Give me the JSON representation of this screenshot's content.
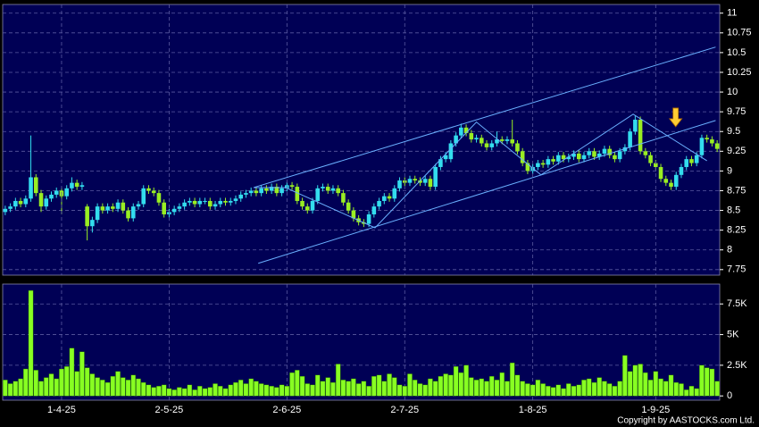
{
  "chart_data": [
    {
      "type": "candlestick",
      "up_color": "#33ddee",
      "down_color": "#99ee22",
      "ylim": [
        7.68,
        11.11
      ],
      "yticks": [
        7.75,
        8,
        8.25,
        8.5,
        8.75,
        9,
        9.25,
        9.5,
        9.75,
        10,
        10.25,
        10.5,
        10.75,
        11
      ],
      "grid": true,
      "ohlc": [
        [
          8.48,
          8.56,
          8.44,
          8.52
        ],
        [
          8.52,
          8.59,
          8.48,
          8.55
        ],
        [
          8.55,
          8.66,
          8.51,
          8.62
        ],
        [
          8.62,
          8.66,
          8.54,
          8.58
        ],
        [
          8.58,
          8.69,
          8.54,
          8.65
        ],
        [
          8.65,
          9.45,
          8.61,
          8.92
        ],
        [
          8.92,
          8.96,
          8.68,
          8.72
        ],
        [
          8.72,
          8.76,
          8.48,
          8.55
        ],
        [
          8.55,
          8.69,
          8.51,
          8.65
        ],
        [
          8.65,
          8.74,
          8.61,
          8.7
        ],
        [
          8.7,
          8.79,
          8.66,
          8.75
        ],
        [
          8.75,
          8.79,
          8.45,
          8.68
        ],
        [
          8.68,
          8.82,
          8.64,
          8.78
        ],
        [
          8.78,
          8.92,
          8.74,
          8.85
        ],
        [
          8.85,
          8.89,
          8.76,
          8.8
        ],
        [
          8.8,
          8.86,
          8.76,
          8.82
        ],
        [
          8.55,
          8.58,
          8.12,
          8.3
        ],
        [
          8.3,
          8.42,
          8.22,
          8.38
        ],
        [
          8.38,
          8.59,
          8.34,
          8.55
        ],
        [
          8.55,
          8.59,
          8.46,
          8.5
        ],
        [
          8.5,
          8.59,
          8.46,
          8.55
        ],
        [
          8.55,
          8.59,
          8.48,
          8.52
        ],
        [
          8.52,
          8.64,
          8.48,
          8.6
        ],
        [
          8.6,
          8.64,
          8.46,
          8.5
        ],
        [
          8.5,
          8.54,
          8.36,
          8.4
        ],
        [
          8.4,
          8.59,
          8.36,
          8.55
        ],
        [
          8.55,
          8.62,
          8.51,
          8.58
        ],
        [
          8.58,
          8.82,
          8.54,
          8.78
        ],
        [
          8.78,
          8.82,
          8.71,
          8.75
        ],
        [
          8.75,
          8.79,
          8.68,
          8.72
        ],
        [
          8.72,
          8.76,
          8.56,
          8.6
        ],
        [
          8.6,
          8.64,
          8.41,
          8.45
        ],
        [
          8.45,
          8.52,
          8.41,
          8.48
        ],
        [
          8.48,
          8.56,
          8.44,
          8.52
        ],
        [
          8.52,
          8.59,
          8.48,
          8.55
        ],
        [
          8.55,
          8.64,
          8.51,
          8.6
        ],
        [
          8.6,
          8.66,
          8.56,
          8.62
        ],
        [
          8.62,
          8.66,
          8.54,
          8.58
        ],
        [
          8.58,
          8.66,
          8.54,
          8.62
        ],
        [
          8.62,
          8.66,
          8.58,
          8.62
        ],
        [
          8.62,
          8.66,
          8.51,
          8.55
        ],
        [
          8.55,
          8.62,
          8.51,
          8.58
        ],
        [
          8.58,
          8.66,
          8.54,
          8.62
        ],
        [
          8.62,
          8.66,
          8.56,
          8.6
        ],
        [
          8.6,
          8.66,
          8.56,
          8.62
        ],
        [
          8.62,
          8.69,
          8.58,
          8.65
        ],
        [
          8.65,
          8.74,
          8.61,
          8.7
        ],
        [
          8.7,
          8.76,
          8.66,
          8.72
        ],
        [
          8.72,
          8.79,
          8.68,
          8.75
        ],
        [
          8.75,
          8.79,
          8.68,
          8.72
        ],
        [
          8.72,
          8.82,
          8.68,
          8.78
        ],
        [
          8.78,
          8.82,
          8.71,
          8.75
        ],
        [
          8.75,
          8.84,
          8.71,
          8.8
        ],
        [
          8.8,
          8.84,
          8.68,
          8.72
        ],
        [
          8.72,
          8.82,
          8.68,
          8.78
        ],
        [
          8.78,
          8.86,
          8.74,
          8.82
        ],
        [
          8.82,
          8.86,
          8.76,
          8.8
        ],
        [
          8.8,
          8.84,
          8.58,
          8.62
        ],
        [
          8.62,
          8.66,
          8.51,
          8.55
        ],
        [
          8.55,
          8.59,
          8.46,
          8.5
        ],
        [
          8.5,
          8.66,
          8.46,
          8.62
        ],
        [
          8.62,
          8.82,
          8.58,
          8.78
        ],
        [
          8.78,
          8.84,
          8.74,
          8.8
        ],
        [
          8.8,
          8.84,
          8.71,
          8.75
        ],
        [
          8.75,
          8.82,
          8.71,
          8.78
        ],
        [
          8.78,
          8.82,
          8.68,
          8.72
        ],
        [
          8.72,
          8.76,
          8.56,
          8.6
        ],
        [
          8.6,
          8.64,
          8.46,
          8.5
        ],
        [
          8.5,
          8.54,
          8.36,
          8.4
        ],
        [
          8.4,
          8.44,
          8.31,
          8.35
        ],
        [
          8.35,
          8.39,
          8.29,
          8.33
        ],
        [
          8.33,
          8.49,
          8.29,
          8.45
        ],
        [
          8.45,
          8.59,
          8.41,
          8.55
        ],
        [
          8.55,
          8.66,
          8.51,
          8.62
        ],
        [
          8.62,
          8.72,
          8.58,
          8.68
        ],
        [
          8.68,
          8.72,
          8.61,
          8.65
        ],
        [
          8.65,
          8.82,
          8.61,
          8.78
        ],
        [
          8.78,
          8.92,
          8.74,
          8.88
        ],
        [
          8.88,
          8.92,
          8.81,
          8.85
        ],
        [
          8.85,
          8.94,
          8.81,
          8.9
        ],
        [
          8.9,
          8.94,
          8.84,
          8.88
        ],
        [
          8.88,
          8.92,
          8.81,
          8.85
        ],
        [
          8.85,
          8.94,
          8.81,
          8.9
        ],
        [
          8.9,
          8.94,
          8.76,
          8.8
        ],
        [
          8.8,
          9.09,
          8.76,
          9.05
        ],
        [
          9.05,
          9.19,
          9.01,
          9.15
        ],
        [
          9.15,
          9.24,
          9.11,
          9.2
        ],
        [
          9.15,
          9.39,
          9.11,
          9.35
        ],
        [
          9.35,
          9.49,
          9.31,
          9.45
        ],
        [
          9.45,
          9.6,
          9.41,
          9.55
        ],
        [
          9.55,
          9.59,
          9.44,
          9.48
        ],
        [
          9.48,
          9.52,
          9.36,
          9.4
        ],
        [
          9.4,
          9.46,
          9.36,
          9.42
        ],
        [
          9.42,
          9.46,
          9.31,
          9.35
        ],
        [
          9.35,
          9.39,
          9.26,
          9.3
        ],
        [
          9.3,
          9.39,
          9.26,
          9.35
        ],
        [
          9.35,
          9.5,
          9.31,
          9.4
        ],
        [
          9.4,
          9.44,
          9.34,
          9.38
        ],
        [
          9.38,
          9.44,
          9.34,
          9.4
        ],
        [
          9.4,
          9.65,
          9.31,
          9.35
        ],
        [
          9.35,
          9.39,
          9.21,
          9.25
        ],
        [
          9.25,
          9.29,
          9.06,
          9.1
        ],
        [
          9.1,
          9.14,
          8.96,
          9.0
        ],
        [
          9.0,
          9.09,
          8.96,
          9.05
        ],
        [
          9.05,
          9.14,
          9.01,
          9.1
        ],
        [
          9.1,
          9.14,
          9.04,
          9.08
        ],
        [
          9.08,
          9.19,
          9.04,
          9.15
        ],
        [
          9.15,
          9.19,
          9.08,
          9.12
        ],
        [
          9.12,
          9.24,
          9.08,
          9.2
        ],
        [
          9.2,
          9.24,
          9.11,
          9.15
        ],
        [
          9.15,
          9.22,
          9.11,
          9.18
        ],
        [
          9.18,
          9.26,
          9.14,
          9.22
        ],
        [
          9.22,
          9.26,
          9.11,
          9.15
        ],
        [
          9.15,
          9.24,
          9.11,
          9.2
        ],
        [
          9.2,
          9.29,
          9.16,
          9.25
        ],
        [
          9.25,
          9.29,
          9.14,
          9.18
        ],
        [
          9.18,
          9.26,
          9.14,
          9.22
        ],
        [
          9.22,
          9.32,
          9.18,
          9.28
        ],
        [
          9.28,
          9.32,
          9.16,
          9.2
        ],
        [
          9.2,
          9.24,
          9.11,
          9.15
        ],
        [
          9.15,
          9.29,
          9.11,
          9.25
        ],
        [
          9.25,
          9.34,
          9.21,
          9.3
        ],
        [
          9.3,
          9.54,
          9.26,
          9.5
        ],
        [
          9.5,
          9.7,
          9.46,
          9.65
        ],
        [
          9.65,
          9.69,
          9.21,
          9.25
        ],
        [
          9.25,
          9.29,
          9.16,
          9.2
        ],
        [
          9.2,
          9.24,
          9.06,
          9.1
        ],
        [
          9.1,
          9.14,
          9.01,
          9.05
        ],
        [
          9.05,
          9.09,
          8.86,
          8.9
        ],
        [
          8.9,
          8.94,
          8.81,
          8.85
        ],
        [
          8.85,
          8.89,
          8.76,
          8.8
        ],
        [
          8.8,
          8.99,
          8.76,
          8.95
        ],
        [
          8.95,
          9.09,
          8.91,
          9.05
        ],
        [
          9.05,
          9.19,
          9.01,
          9.15
        ],
        [
          9.15,
          9.19,
          9.06,
          9.1
        ],
        [
          9.1,
          9.24,
          9.06,
          9.2
        ],
        [
          9.2,
          9.46,
          9.16,
          9.42
        ],
        [
          9.42,
          9.46,
          9.36,
          9.4
        ],
        [
          9.4,
          9.44,
          9.31,
          9.35
        ],
        [
          9.35,
          9.39,
          9.24,
          9.28
        ]
      ],
      "trendline_color": "#6ab0ff",
      "trendlines": [
        {
          "x": [
            48.5,
            138.7
          ],
          "y": [
            8.79,
            10.57
          ]
        },
        {
          "x": [
            49.4,
            138.7
          ],
          "y": [
            7.83,
            9.64
          ]
        },
        {
          "x": [
            48.5,
            54.7,
            72.2,
            92,
            104.6,
            122.6,
            137
          ],
          "y": [
            8.79,
            8.79,
            8.28,
            9.62,
            8.95,
            9.72,
            9.13
          ]
        }
      ],
      "arrow": {
        "x": 130.9,
        "y": 9.56,
        "color": "#ffcc33"
      }
    },
    {
      "type": "bar",
      "color": "#88ff22",
      "ylim": [
        -0.35,
        9.12
      ],
      "yticks": [
        0,
        {
          "value": 2.5,
          "label": "2.5K"
        },
        {
          "value": 5,
          "label": "5K"
        },
        {
          "value": 7.5,
          "label": "7.5K"
        }
      ],
      "grid": true,
      "categories": [
        null,
        null,
        null,
        null,
        null,
        null,
        null,
        null,
        null,
        null,
        null,
        "1-4-25",
        null,
        null,
        null,
        null,
        null,
        null,
        null,
        null,
        null,
        null,
        null,
        null,
        null,
        null,
        null,
        null,
        null,
        null,
        null,
        null,
        "2-5-25",
        null,
        null,
        null,
        null,
        null,
        null,
        null,
        null,
        null,
        null,
        null,
        null,
        null,
        null,
        null,
        null,
        null,
        null,
        null,
        null,
        null,
        null,
        "2-6-25",
        null,
        null,
        null,
        null,
        null,
        null,
        null,
        null,
        null,
        null,
        null,
        null,
        null,
        null,
        null,
        null,
        null,
        null,
        null,
        null,
        null,
        null,
        "2-7-25",
        null,
        null,
        null,
        null,
        null,
        null,
        null,
        null,
        null,
        null,
        null,
        null,
        null,
        null,
        null,
        null,
        null,
        null,
        null,
        null,
        null,
        null,
        null,
        null,
        "1-8-25",
        null,
        null,
        null,
        null,
        null,
        null,
        null,
        null,
        null,
        null,
        null,
        null,
        null,
        null,
        null,
        null,
        null,
        null,
        null,
        null,
        null,
        null,
        null,
        "1-9-25",
        null,
        null,
        null,
        null,
        null,
        null,
        null,
        null,
        null,
        null,
        null,
        null
      ],
      "values": [
        1.3,
        1.0,
        1.2,
        1.4,
        2.2,
        8.6,
        2.1,
        1.2,
        1.5,
        1.8,
        1.4,
        2.2,
        2.4,
        3.9,
        2.0,
        3.6,
        2.3,
        1.8,
        1.5,
        1.3,
        1.1,
        1.6,
        2.0,
        1.5,
        1.3,
        1.7,
        1.4,
        1.1,
        0.9,
        0.7,
        0.8,
        0.9,
        0.6,
        0.5,
        0.7,
        0.6,
        0.9,
        0.5,
        0.8,
        0.6,
        0.7,
        1.0,
        0.8,
        0.6,
        0.9,
        1.1,
        1.3,
        1.0,
        1.4,
        1.2,
        1.0,
        0.9,
        0.8,
        0.7,
        0.9,
        0.8,
        1.9,
        2.1,
        1.6,
        1.0,
        0.9,
        1.7,
        1.2,
        1.5,
        1.1,
        2.6,
        1.3,
        1.2,
        1.4,
        1.0,
        1.2,
        0.8,
        1.6,
        1.7,
        1.2,
        1.8,
        1.5,
        0.9,
        0.8,
        1.8,
        1.3,
        1.0,
        0.9,
        1.4,
        1.2,
        1.6,
        1.8,
        1.7,
        2.4,
        1.9,
        2.5,
        1.5,
        1.3,
        1.4,
        1.2,
        1.6,
        1.3,
        1.9,
        1.2,
        2.7,
        1.7,
        1.2,
        1.0,
        0.9,
        1.3,
        1.0,
        0.8,
        0.7,
        0.9,
        0.6,
        1.0,
        0.8,
        0.9,
        1.3,
        1.4,
        1.1,
        1.5,
        1.2,
        1.0,
        0.8,
        1.2,
        3.3,
        2.0,
        2.5,
        2.6,
        1.9,
        1.3,
        2.0,
        1.4,
        1.2,
        1.7,
        1.1,
        1.0,
        0.5,
        0.8,
        0.6,
        2.5,
        2.3,
        2.2,
        1.2
      ]
    }
  ],
  "copyright": "Copyright by AASTOCKS.com Ltd."
}
